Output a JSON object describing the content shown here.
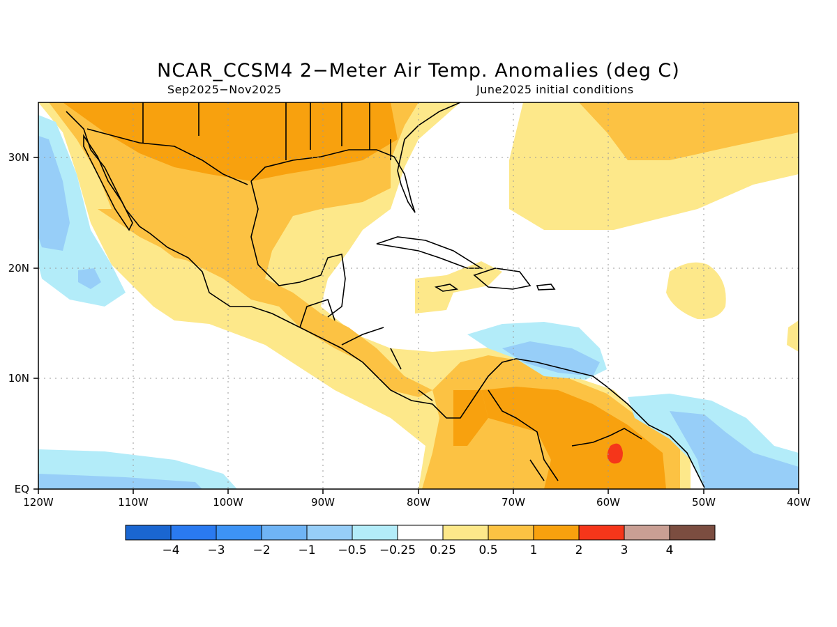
{
  "title": "NCAR_CCSM4 2−Meter Air Temp. Anomalies (deg C)",
  "subtitle_left": "Sep2025−Nov2025",
  "subtitle_right": "June2025 initial conditions",
  "axes": {
    "lon": [
      {
        "value": -120,
        "label": "120W"
      },
      {
        "value": -110,
        "label": "110W"
      },
      {
        "value": -100,
        "label": "100W"
      },
      {
        "value": -90,
        "label": "90W"
      },
      {
        "value": -80,
        "label": "80W"
      },
      {
        "value": -70,
        "label": "70W"
      },
      {
        "value": -60,
        "label": "60W"
      },
      {
        "value": -50,
        "label": "50W"
      },
      {
        "value": -40,
        "label": "40W"
      }
    ],
    "lat": [
      {
        "value": 0,
        "label": "EQ"
      },
      {
        "value": 10,
        "label": "10N"
      },
      {
        "value": 20,
        "label": "20N"
      },
      {
        "value": 30,
        "label": "30N"
      }
    ],
    "lon_range": [
      -120,
      -40
    ],
    "lat_range": [
      0,
      35
    ]
  },
  "colorbar": {
    "colors": [
      "#1a66d1",
      "#2a7af0",
      "#3d93f5",
      "#6fb4f5",
      "#97cef8",
      "#b3ecf9",
      "#ffffff",
      "#fde88a",
      "#fcc243",
      "#f8a10e",
      "#f5361a",
      "#c99f94",
      "#7b4d40"
    ],
    "labels": [
      "−4",
      "−3",
      "−2",
      "−1",
      "−0.5",
      "−0.25",
      "0.25",
      "0.5",
      "1",
      "2",
      "3",
      "4"
    ]
  }
}
